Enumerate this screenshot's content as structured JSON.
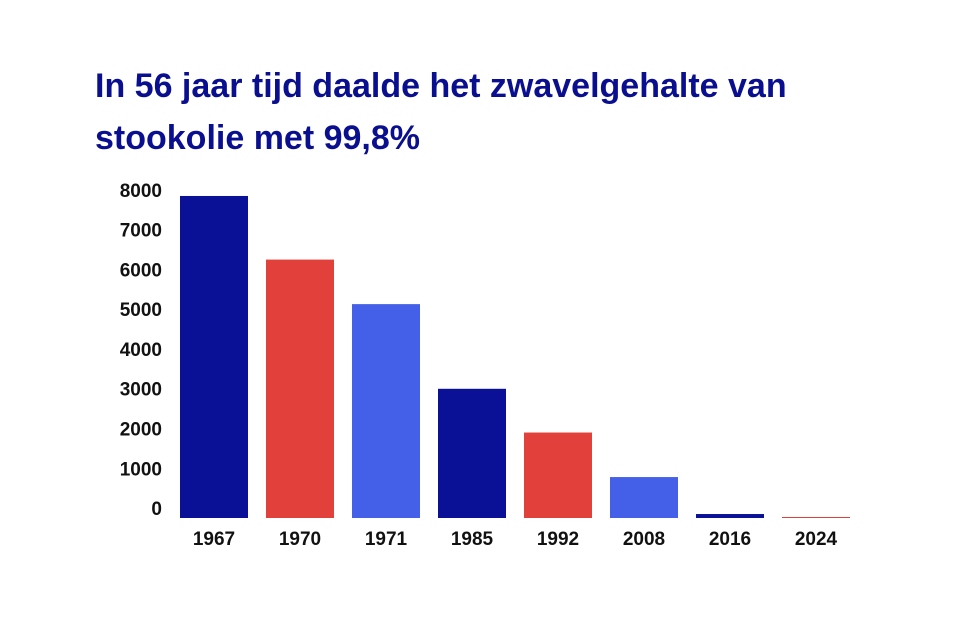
{
  "chart_data": {
    "type": "bar",
    "title": "In 56 jaar tijd daalde het zwavelgehalte van stookolie met 99,8%",
    "categories": [
      "1967",
      "1970",
      "1971",
      "1985",
      "1992",
      "2008",
      "2016",
      "2024"
    ],
    "values": [
      8100,
      6500,
      5380,
      3250,
      2150,
      1030,
      100,
      25
    ],
    "colors": [
      "#0a1196",
      "#e2403a",
      "#4560e8",
      "#0a1196",
      "#e2403a",
      "#4560e8",
      "#0a1196",
      "#e2403a"
    ],
    "ylim": [
      0,
      8200
    ],
    "yticks": [
      0,
      1000,
      2000,
      3000,
      4000,
      5000,
      6000,
      7000,
      8000
    ],
    "grid": false
  }
}
